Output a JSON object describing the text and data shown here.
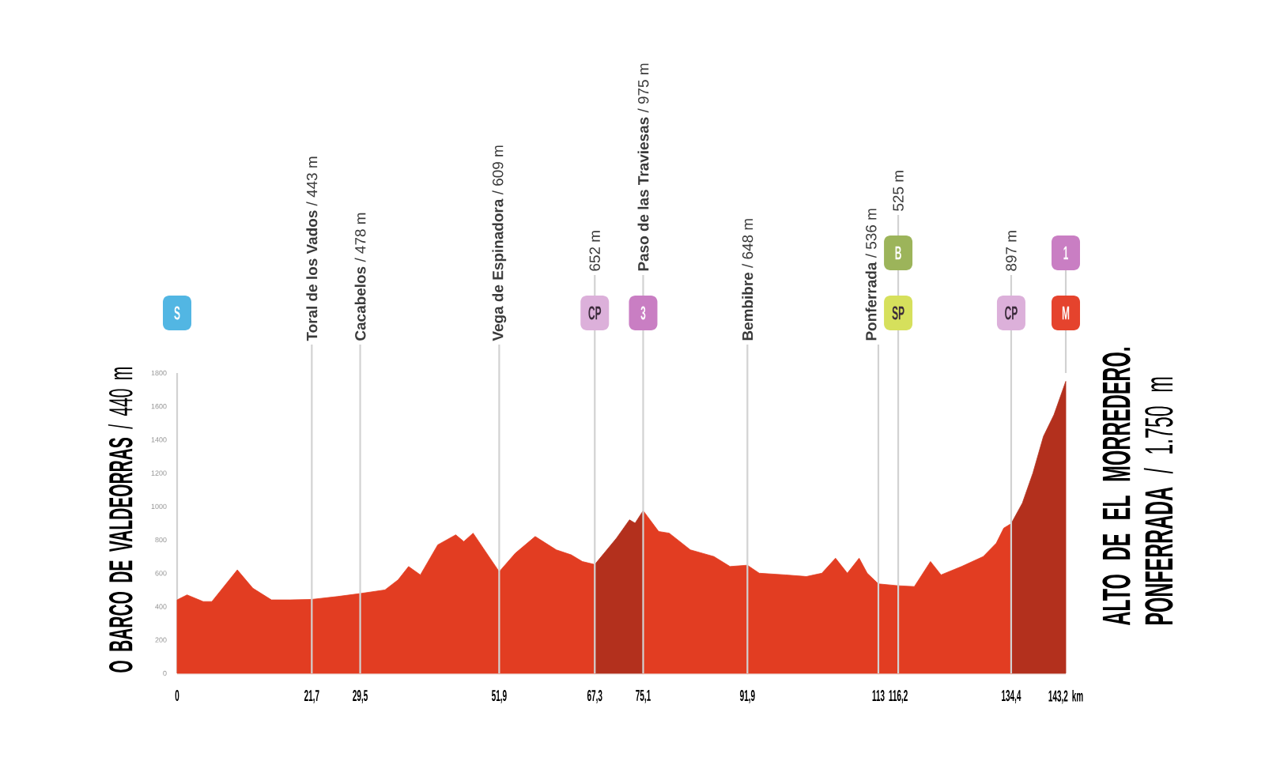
{
  "chart_data": {
    "type": "area",
    "xlim": [
      0,
      143.2
    ],
    "ylim": [
      0,
      1800
    ],
    "xticks": [
      0,
      {
        "value": 21.7,
        "label": "21,7"
      },
      {
        "value": 29.5,
        "label": "29,5"
      },
      {
        "value": 51.9,
        "label": "51,9"
      },
      {
        "value": 67.3,
        "label": "67,3"
      },
      {
        "value": 75.1,
        "label": "75,1"
      },
      {
        "value": 91.9,
        "label": "91,9"
      },
      113,
      {
        "value": 116.2,
        "label": "116,2"
      },
      {
        "value": 134.4,
        "label": "134,4"
      },
      {
        "value": 143.2,
        "label": "143,2 km"
      }
    ],
    "yticks": [
      0,
      200,
      400,
      600,
      800,
      1000,
      1200,
      1400,
      1600,
      1800
    ],
    "series": [
      {
        "color": "#e23d22",
        "x": [
          0,
          1.6,
          4.2,
          5.6,
          9.7,
          12.2,
          15.2,
          18.2,
          21.7,
          25.8,
          29.5,
          33.5,
          35.6,
          37.3,
          39.2,
          42.0,
          44.9,
          46.2,
          47.7,
          51.9,
          54.5,
          57.7,
          61.1,
          63.5,
          65.3,
          67.3
        ],
        "values": [
          440,
          470,
          430,
          430,
          620,
          510,
          440,
          440,
          443,
          460,
          478,
          500,
          560,
          640,
          590,
          770,
          830,
          790,
          840,
          609,
          720,
          820,
          740,
          710,
          670,
          652
        ]
      },
      {
        "color": "#b3301d",
        "x": [
          67.3,
          70.8,
          72.9,
          73.8,
          75.1
        ],
        "values": [
          652,
          810,
          920,
          900,
          975
        ]
      },
      {
        "color": "#e23d22",
        "x": [
          75.1,
          77.6,
          79.3,
          82.7,
          86.5,
          89.1,
          91.9,
          93.8,
          98.0,
          101.4,
          103.9,
          106.1,
          108.0,
          109.9,
          111.2,
          113,
          116.2,
          118.8,
          121.4,
          123.1,
          126.4,
          129.9,
          132.0,
          133.2,
          134.4
        ],
        "values": [
          975,
          850,
          840,
          740,
          700,
          640,
          648,
          600,
          590,
          580,
          600,
          690,
          600,
          690,
          600,
          536,
          525,
          520,
          670,
          590,
          640,
          700,
          780,
          870,
          897
        ]
      },
      {
        "color": "#b3301d",
        "x": [
          134.4,
          136.2,
          137.9,
          139.6,
          141.3,
          143.2
        ],
        "values": [
          897,
          1020,
          1200,
          1420,
          1550,
          1750
        ]
      }
    ],
    "ref_lines": [
      {
        "axis": "x",
        "value": 21.7,
        "label": "**Toral de los Vados** / 443 m",
        "color": "#d2d2d2"
      },
      {
        "axis": "x",
        "value": 29.5,
        "label": "**Cacabelos** / 478 m",
        "color": "#d2d2d2"
      },
      {
        "axis": "x",
        "value": 51.9,
        "label": "**Vega de Espinadora** / 609 m",
        "color": "#d2d2d2"
      },
      {
        "axis": "x",
        "value": 67.3,
        "label": "652 m",
        "color": "#d2d2d2"
      },
      {
        "axis": "x",
        "value": 75.1,
        "label": "**Paso de las Traviesas** / 975 m",
        "color": "#d2d2d2"
      },
      {
        "axis": "x",
        "value": 91.9,
        "label": "**Bembibre** / 648 m",
        "color": "#d2d2d2"
      },
      {
        "axis": "x",
        "value": 113,
        "label": "**Ponferrada** / 536 m",
        "color": "#d2d2d2"
      },
      {
        "axis": "x",
        "value": 116.2,
        "label": "525 m",
        "color": "#d2d2d2"
      },
      {
        "axis": "x",
        "value": 134.4,
        "label": "897 m",
        "color": "#d2d2d2"
      }
    ],
    "annotations": [
      "**O BARCO DE VALDEORRAS** / 440 m",
      "**ALTO DE EL MORREDERO. PONFERRADA** / 1.750 m",
      "S",
      "CP",
      "3",
      "B",
      "SP",
      "CP",
      "1",
      "M"
    ]
  }
}
